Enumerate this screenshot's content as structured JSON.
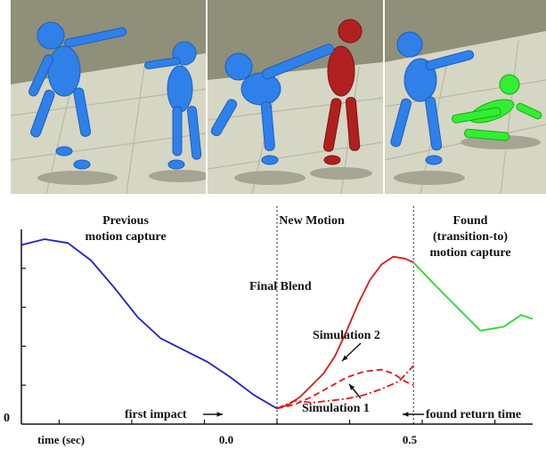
{
  "panels": [
    {
      "name": "scene-panel-before-impact"
    },
    {
      "name": "scene-panel-impact"
    },
    {
      "name": "scene-panel-transition"
    }
  ],
  "colors": {
    "previous": "#1f1fd0",
    "blend": "#e01818",
    "found": "#22dd22",
    "character_blue": "#2f80e8",
    "character_red": "#b02020",
    "character_green": "#33ee33",
    "floor": "#d9d9c8",
    "wall": "#8e8e78"
  },
  "labels": {
    "previous_motion": [
      "Previous",
      "motion capture"
    ],
    "new_motion": "New Motion",
    "found_motion": [
      "Found",
      "(transition-to)",
      "motion capture"
    ],
    "final_blend": "Final Blend",
    "simulation_2": "Simulation 2",
    "simulation_1": "Simulation 1",
    "first_impact": "first impact",
    "found_return_time": "found return time",
    "y_zero": "0"
  },
  "chart_data": {
    "type": "line",
    "xlabel": "time (sec)",
    "xlim": [
      -0.88,
      0.88
    ],
    "ylim": [
      0,
      1
    ],
    "x_ticks": [
      "0.0",
      "0.5"
    ],
    "x_tick_values": [
      0.0,
      0.5
    ],
    "markers": [
      0.0,
      0.47
    ],
    "series": [
      {
        "name": "Previous motion capture",
        "style": "solid",
        "color": "#1f1fd0",
        "x": [
          -0.88,
          -0.8,
          -0.72,
          -0.64,
          -0.56,
          -0.48,
          -0.4,
          -0.32,
          -0.24,
          -0.16,
          -0.08,
          0.0
        ],
        "y": [
          0.92,
          0.95,
          0.93,
          0.84,
          0.7,
          0.55,
          0.44,
          0.38,
          0.32,
          0.24,
          0.15,
          0.08
        ]
      },
      {
        "name": "Final Blend",
        "style": "solid",
        "color": "#e01818",
        "x": [
          0.0,
          0.04,
          0.08,
          0.12,
          0.16,
          0.2,
          0.24,
          0.28,
          0.32,
          0.36,
          0.4,
          0.44,
          0.47
        ],
        "y": [
          0.08,
          0.1,
          0.14,
          0.2,
          0.26,
          0.35,
          0.48,
          0.62,
          0.74,
          0.82,
          0.86,
          0.85,
          0.83
        ]
      },
      {
        "name": "Simulation 2",
        "style": "dashed",
        "color": "#e01818",
        "x": [
          0.0,
          0.06,
          0.12,
          0.18,
          0.24,
          0.3,
          0.36,
          0.4,
          0.44,
          0.47
        ],
        "y": [
          0.08,
          0.1,
          0.14,
          0.19,
          0.24,
          0.27,
          0.28,
          0.26,
          0.22,
          0.2
        ]
      },
      {
        "name": "Simulation 1",
        "style": "dashdot",
        "color": "#e01818",
        "x": [
          0.0,
          0.06,
          0.12,
          0.18,
          0.24,
          0.3,
          0.36,
          0.42,
          0.47
        ],
        "y": [
          0.08,
          0.12,
          0.11,
          0.12,
          0.13,
          0.15,
          0.18,
          0.22,
          0.3
        ]
      },
      {
        "name": "Found motion capture",
        "style": "solid",
        "color": "#22dd22",
        "x": [
          0.47,
          0.54,
          0.62,
          0.7,
          0.78,
          0.84,
          0.88
        ],
        "y": [
          0.83,
          0.72,
          0.6,
          0.48,
          0.5,
          0.56,
          0.54
        ]
      }
    ]
  }
}
